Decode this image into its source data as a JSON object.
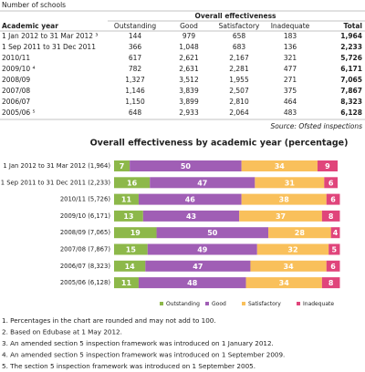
{
  "header": {
    "caption": "Number of schools"
  },
  "table": {
    "header_group": "Overall effectiveness",
    "columns": [
      "Academic year",
      "Outstanding",
      "Good",
      "Satisfactory",
      "Inadequate",
      "Total"
    ],
    "rows": [
      [
        "1 Jan 2012 to 31 Mar 2012 ³",
        "144",
        "979",
        "658",
        "183",
        "1,964"
      ],
      [
        "1 Sep 2011 to 31 Dec 2011",
        "366",
        "1,048",
        "683",
        "136",
        "2,233"
      ],
      [
        "2010/11",
        "617",
        "2,621",
        "2,167",
        "321",
        "5,726"
      ],
      [
        "2009/10 ⁴",
        "782",
        "2,631",
        "2,281",
        "477",
        "6,171"
      ],
      [
        "2008/09",
        "1,327",
        "3,512",
        "1,955",
        "271",
        "7,065"
      ],
      [
        "2007/08",
        "1,146",
        "3,839",
        "2,507",
        "375",
        "7,867"
      ],
      [
        "2006/07",
        "1,150",
        "3,899",
        "2,810",
        "464",
        "8,323"
      ],
      [
        "2005/06 ⁵",
        "648",
        "2,933",
        "2,064",
        "483",
        "6,128"
      ]
    ],
    "source": "Source: Ofsted inspections"
  },
  "chart_data": {
    "type": "stacked-bar-horizontal",
    "title": "Overall effectiveness by academic year (percentage)",
    "categories": [
      "1 Jan 2012 to 31 Mar 2012 (1,964)",
      "1 Sep 2011 to 31 Dec 2011 (2,233)",
      "2010/11 (5,726)",
      "2009/10 (6,171)",
      "2008/09 (7,065)",
      "2007/08 (7,867)",
      "2006/07 (8,323)",
      "2005/06 (6,128)"
    ],
    "series": [
      {
        "name": "Outstanding",
        "color": "#8db84a",
        "values": [
          7,
          16,
          11,
          13,
          19,
          15,
          14,
          11
        ]
      },
      {
        "name": "Good",
        "color": "#a05eb5",
        "values": [
          50,
          47,
          46,
          43,
          50,
          49,
          47,
          48
        ]
      },
      {
        "name": "Satisfactory",
        "color": "#f9c05b",
        "values": [
          34,
          31,
          38,
          37,
          28,
          32,
          34,
          34
        ]
      },
      {
        "name": "Inadequate",
        "color": "#e0457b",
        "values": [
          9,
          6,
          6,
          8,
          4,
          5,
          6,
          8
        ]
      }
    ],
    "xlim": [
      0,
      100
    ]
  },
  "notes": [
    "1. Percentages in the chart are rounded and may not add to 100.",
    "2. Based on Edubase at 1 May 2012.",
    "3. An amended section 5 inspection framework was introduced on 1 January 2012.",
    "4. An amended section 5 inspection framework was introduced on 1 September 2009.",
    "5. The section 5 inspection framework was introduced on 1 September 2005."
  ]
}
